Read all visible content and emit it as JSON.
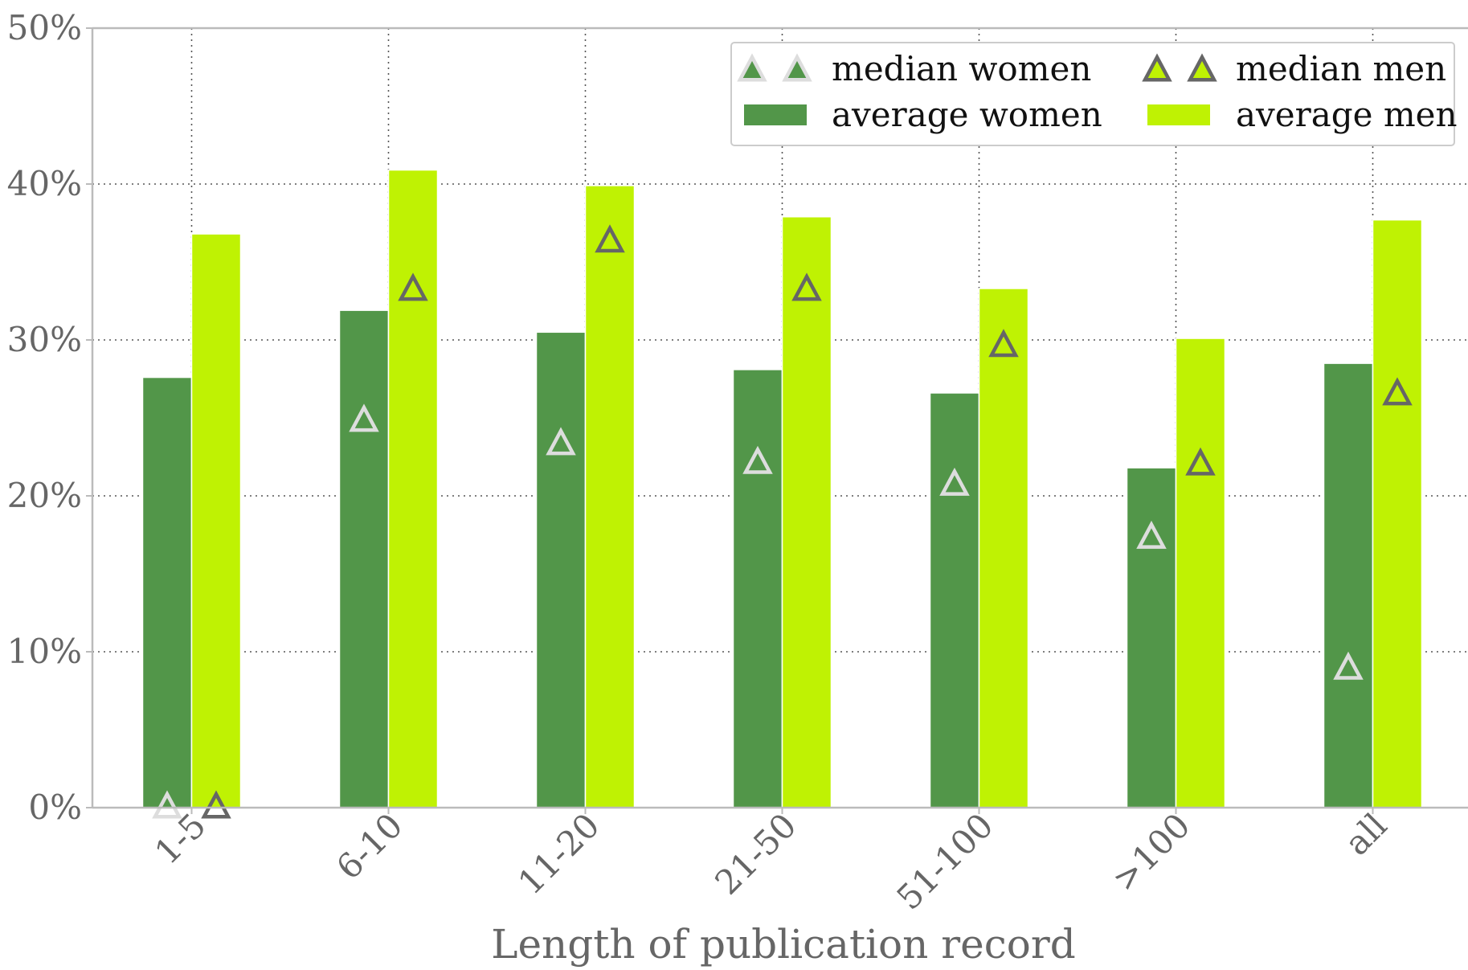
{
  "chart_data": {
    "type": "bar",
    "title": "",
    "xlabel": "Length of publication record",
    "ylabel": "",
    "ylim": [
      0,
      50
    ],
    "y_ticks": [
      "0%",
      "10%",
      "20%",
      "30%",
      "40%",
      "50%"
    ],
    "categories": [
      "1-5",
      "6-10",
      "11-20",
      "21-50",
      "51-100",
      ">100",
      "all"
    ],
    "series": [
      {
        "name": "average women",
        "kind": "bar",
        "color": "#529649",
        "values": [
          27.6,
          31.9,
          30.5,
          28.1,
          26.6,
          21.8,
          28.5
        ]
      },
      {
        "name": "average men",
        "kind": "bar",
        "color": "#bff203",
        "values": [
          36.8,
          40.9,
          39.9,
          37.9,
          33.3,
          30.1,
          37.7
        ]
      },
      {
        "name": "median women",
        "kind": "marker",
        "marker": "triangle",
        "color": "#dddddd",
        "values": [
          0,
          24.8,
          23.3,
          22.1,
          20.7,
          17.3,
          8.9
        ]
      },
      {
        "name": "median men",
        "kind": "marker",
        "marker": "triangle",
        "color": "#666666",
        "values": [
          0,
          33.2,
          36.3,
          33.2,
          29.6,
          22.0,
          26.5
        ]
      }
    ],
    "grid": true,
    "legend_position": "top-right"
  }
}
